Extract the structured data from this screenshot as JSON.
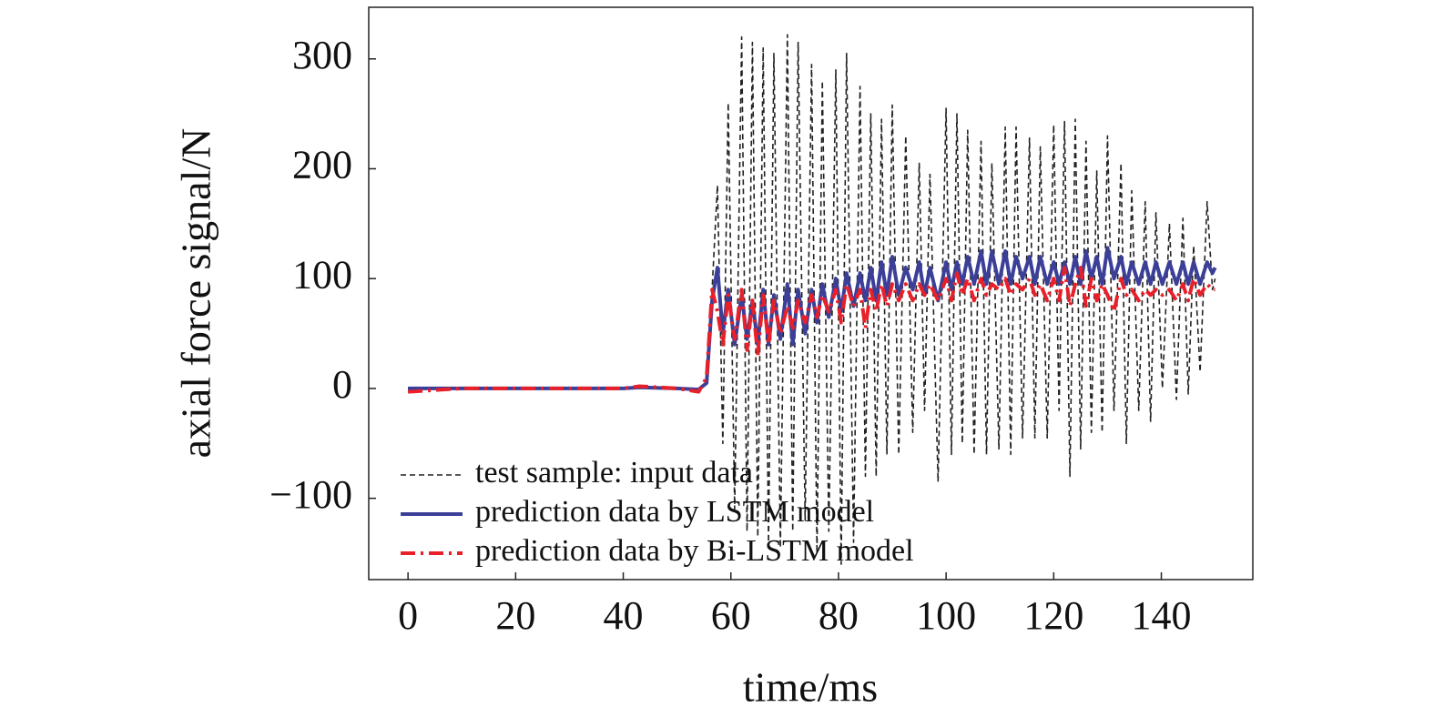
{
  "chart_data": {
    "type": "line",
    "xlabel": "time/ms",
    "ylabel": "axial force signal/N",
    "x": [
      0,
      10,
      20,
      30,
      40,
      43,
      50,
      54,
      55.5,
      56.5,
      57.5,
      58.5,
      59.5,
      60.7,
      62,
      63,
      64,
      65,
      66,
      67,
      68,
      69.2,
      70.5,
      71.5,
      72.5,
      73.8,
      75,
      76,
      77,
      78.2,
      79.5,
      80.5,
      81.5,
      82.8,
      84,
      85,
      86,
      87,
      88,
      89,
      90,
      91.2,
      92.5,
      93.8,
      95,
      96,
      97,
      98.5,
      100,
      101,
      102,
      103,
      104,
      105.2,
      106.5,
      107.5,
      108.5,
      109.8,
      111,
      112,
      113,
      114.2,
      115.5,
      116.5,
      117.5,
      118.8,
      120,
      121,
      122,
      123,
      124,
      125,
      126,
      127,
      128,
      129,
      130,
      131.2,
      132.5,
      133.5,
      134.5,
      135.8,
      137,
      138,
      139,
      140.2,
      141.5,
      142.8,
      144,
      145,
      146,
      147.2,
      148.5,
      149.5,
      150
    ],
    "series": [
      {
        "name": "test sample: input data",
        "color": "#222222",
        "style": "dashed",
        "width": 1.6,
        "values": [
          0,
          0,
          0,
          0,
          0,
          2,
          0,
          -2,
          5,
          90,
          185,
          -50,
          260,
          -110,
          320,
          -130,
          315,
          -135,
          310,
          -140,
          305,
          -145,
          322,
          -130,
          315,
          -120,
          295,
          -150,
          280,
          -130,
          290,
          -160,
          305,
          -140,
          275,
          -80,
          250,
          -80,
          245,
          -60,
          258,
          -60,
          230,
          -40,
          205,
          -20,
          195,
          -85,
          255,
          -60,
          250,
          -50,
          235,
          -60,
          225,
          -60,
          205,
          -55,
          238,
          -60,
          238,
          -45,
          228,
          -45,
          220,
          -45,
          240,
          -20,
          243,
          -80,
          245,
          -55,
          225,
          -40,
          198,
          -40,
          230,
          -20,
          205,
          -50,
          180,
          -20,
          170,
          -30,
          160,
          0,
          150,
          -10,
          155,
          -5,
          130,
          15,
          170,
          90,
          100
        ]
      },
      {
        "name": "prediction data by LSTM model",
        "color": "#3b3f98",
        "style": "solid",
        "width": 4,
        "values": [
          0,
          0,
          0,
          0,
          0,
          1,
          0,
          -1,
          5,
          80,
          110,
          50,
          90,
          40,
          85,
          45,
          80,
          40,
          90,
          40,
          85,
          45,
          95,
          40,
          90,
          50,
          90,
          60,
          95,
          65,
          100,
          70,
          105,
          75,
          105,
          80,
          110,
          80,
          115,
          85,
          120,
          85,
          110,
          90,
          115,
          85,
          110,
          80,
          115,
          90,
          115,
          95,
          120,
          95,
          125,
          95,
          125,
          95,
          125,
          95,
          120,
          100,
          120,
          95,
          120,
          95,
          115,
          95,
          115,
          95,
          120,
          95,
          125,
          100,
          120,
          95,
          128,
          100,
          120,
          95,
          115,
          95,
          115,
          95,
          115,
          95,
          115,
          95,
          115,
          95,
          115,
          95,
          115,
          105,
          110
        ]
      },
      {
        "name": "prediction data by Bi-LSTM model",
        "color": "#e8202a",
        "style": "dashdot",
        "width": 4,
        "values": [
          -3,
          0,
          0,
          0,
          0,
          2,
          0,
          -3,
          10,
          90,
          70,
          40,
          85,
          45,
          90,
          35,
          80,
          30,
          85,
          40,
          80,
          50,
          75,
          55,
          80,
          60,
          85,
          65,
          85,
          70,
          90,
          60,
          95,
          75,
          90,
          55,
          90,
          70,
          95,
          75,
          95,
          80,
          95,
          80,
          95,
          85,
          95,
          80,
          100,
          80,
          105,
          85,
          100,
          80,
          100,
          85,
          95,
          90,
          100,
          85,
          95,
          90,
          100,
          85,
          95,
          80,
          100,
          80,
          110,
          75,
          95,
          110,
          75,
          100,
          80,
          95,
          85,
          70,
          100,
          85,
          90,
          80,
          90,
          85,
          90,
          85,
          90,
          80,
          95,
          80,
          100,
          85,
          95,
          90,
          90
        ]
      }
    ],
    "xlim": [
      -7.3,
      157
    ],
    "ylim": [
      -174,
      347
    ],
    "xticks": [
      0,
      20,
      40,
      60,
      80,
      100,
      120,
      140
    ],
    "yticks": [
      {
        "value": -100,
        "label": "−100"
      },
      0,
      100,
      200,
      300
    ],
    "legend": "lower left"
  }
}
